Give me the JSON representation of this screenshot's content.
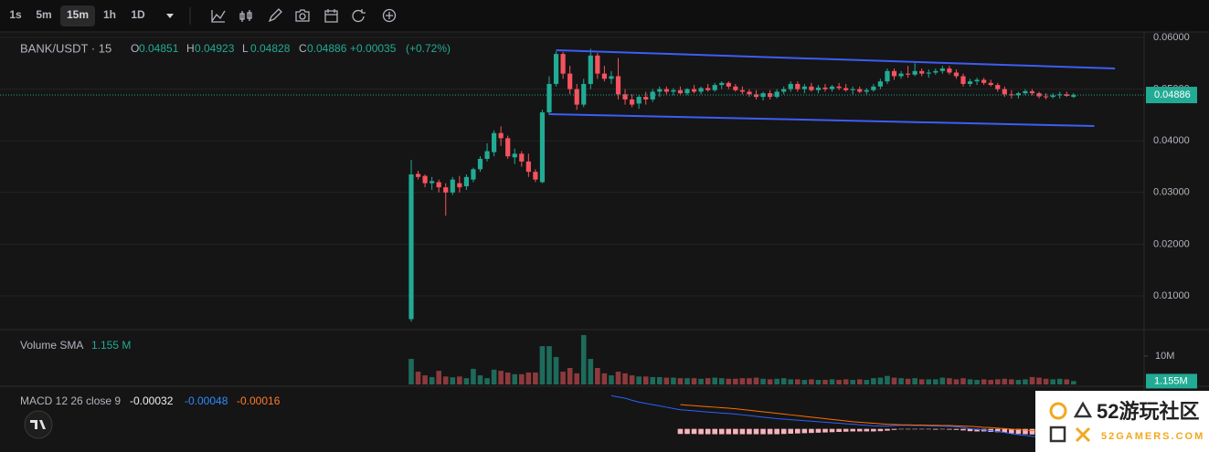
{
  "toolbar": {
    "intervals": [
      "1s",
      "5m",
      "15m",
      "1h",
      "1D"
    ],
    "selected": 2
  },
  "chart_data": {
    "type": "candlestick",
    "title": "BANK/USDT · 15",
    "ohlc_labels": [
      "O",
      "H",
      "L",
      "C"
    ],
    "change": {
      "value": 0.00035,
      "label": "+0.00035"
    },
    "change_pct": {
      "value": 0.72,
      "label": "(+0.72%)"
    },
    "up_color": "#22ab94",
    "down_color": "#f7525f",
    "ylim": [
      0.00364,
      0.06106
    ],
    "yticks": [
      {
        "value": 0.06,
        "label": "0.06000"
      },
      {
        "value": 0.05,
        "label": "0.05000"
      },
      {
        "value": 0.04,
        "label": "0.04000"
      },
      {
        "value": 0.03,
        "label": "0.03000"
      },
      {
        "value": 0.02,
        "label": "0.02000"
      },
      {
        "value": 0.01,
        "label": "0.01000"
      }
    ],
    "grid": true,
    "open": [
      0.0055,
      0.0336,
      0.0332,
      0.0318,
      0.032,
      0.031,
      0.03,
      0.0318,
      0.0312,
      0.0325,
      0.0345,
      0.0365,
      0.0378,
      0.0415,
      0.0405,
      0.0368,
      0.0375,
      0.036,
      0.034,
      0.032,
      0.0455,
      0.051,
      0.0568,
      0.053,
      0.05,
      0.047,
      0.051,
      0.0565,
      0.053,
      0.052,
      0.0525,
      0.049,
      0.048,
      0.0472,
      0.0485,
      0.048,
      0.0495,
      0.05,
      0.0495,
      0.0498,
      0.0492,
      0.05,
      0.0495,
      0.0502,
      0.0498,
      0.0508,
      0.0512,
      0.0505,
      0.0498,
      0.0495,
      0.049,
      0.0485,
      0.0492,
      0.0485,
      0.0495,
      0.05,
      0.051,
      0.05,
      0.0505,
      0.0498,
      0.0503,
      0.05,
      0.0505,
      0.0502,
      0.0498,
      0.05,
      0.0495,
      0.0498,
      0.0505,
      0.0515,
      0.0535,
      0.0525,
      0.053,
      0.0528,
      0.0535,
      0.053,
      0.0532,
      0.0535,
      0.054,
      0.0532,
      0.0525,
      0.051,
      0.0515,
      0.0518,
      0.0512,
      0.0508,
      0.05,
      0.049,
      0.0488,
      0.0492,
      0.0496,
      0.0492,
      0.0486,
      0.0485,
      0.0488,
      0.049,
      0.04851
    ],
    "high": [
      0.0363,
      0.0342,
      0.0335,
      0.033,
      0.0325,
      0.0318,
      0.033,
      0.0332,
      0.0335,
      0.0348,
      0.037,
      0.0395,
      0.042,
      0.0428,
      0.041,
      0.0385,
      0.038,
      0.0375,
      0.0345,
      0.046,
      0.0525,
      0.0573,
      0.0572,
      0.0545,
      0.051,
      0.052,
      0.0578,
      0.057,
      0.0545,
      0.0535,
      0.056,
      0.05,
      0.049,
      0.0488,
      0.0495,
      0.05,
      0.0505,
      0.0505,
      0.0502,
      0.0505,
      0.0502,
      0.0508,
      0.0505,
      0.051,
      0.0512,
      0.0515,
      0.0515,
      0.051,
      0.0505,
      0.05,
      0.0498,
      0.0495,
      0.0498,
      0.05,
      0.0505,
      0.0515,
      0.0515,
      0.051,
      0.0512,
      0.0508,
      0.051,
      0.0508,
      0.0512,
      0.051,
      0.0505,
      0.0505,
      0.0502,
      0.051,
      0.052,
      0.054,
      0.054,
      0.0535,
      0.0545,
      0.055,
      0.054,
      0.0538,
      0.054,
      0.0545,
      0.0545,
      0.0538,
      0.053,
      0.052,
      0.0522,
      0.0522,
      0.0518,
      0.0512,
      0.0505,
      0.0498,
      0.0495,
      0.05,
      0.05,
      0.0495,
      0.0492,
      0.0492,
      0.0495,
      0.0495,
      0.04923
    ],
    "low": [
      0.005,
      0.0325,
      0.031,
      0.0305,
      0.03,
      0.0255,
      0.0295,
      0.03,
      0.0305,
      0.032,
      0.034,
      0.036,
      0.037,
      0.039,
      0.0365,
      0.0355,
      0.035,
      0.033,
      0.032,
      0.0318,
      0.045,
      0.0505,
      0.052,
      0.049,
      0.046,
      0.0465,
      0.05,
      0.052,
      0.0515,
      0.051,
      0.048,
      0.047,
      0.0465,
      0.0462,
      0.047,
      0.0475,
      0.0485,
      0.049,
      0.0488,
      0.049,
      0.0488,
      0.0492,
      0.049,
      0.0495,
      0.0495,
      0.05,
      0.05,
      0.0495,
      0.049,
      0.0485,
      0.048,
      0.0478,
      0.048,
      0.0482,
      0.049,
      0.0495,
      0.0495,
      0.0492,
      0.0495,
      0.0492,
      0.0495,
      0.0495,
      0.0498,
      0.0495,
      0.049,
      0.0492,
      0.049,
      0.0495,
      0.05,
      0.051,
      0.0518,
      0.052,
      0.0522,
      0.0525,
      0.0525,
      0.0522,
      0.0528,
      0.053,
      0.0528,
      0.052,
      0.0505,
      0.0505,
      0.0508,
      0.0508,
      0.0505,
      0.0495,
      0.0485,
      0.0482,
      0.0482,
      0.0488,
      0.0488,
      0.0482,
      0.048,
      0.0482,
      0.0482,
      0.0485,
      0.04828
    ],
    "close": [
      0.0335,
      0.033,
      0.0318,
      0.0322,
      0.031,
      0.03,
      0.0325,
      0.031,
      0.033,
      0.0345,
      0.0365,
      0.038,
      0.0415,
      0.0405,
      0.037,
      0.0375,
      0.036,
      0.034,
      0.0325,
      0.0455,
      0.051,
      0.0568,
      0.053,
      0.05,
      0.047,
      0.051,
      0.0565,
      0.053,
      0.052,
      0.0525,
      0.049,
      0.048,
      0.047,
      0.0485,
      0.048,
      0.0495,
      0.05,
      0.0495,
      0.0498,
      0.0492,
      0.05,
      0.0495,
      0.0502,
      0.0498,
      0.0508,
      0.0512,
      0.0505,
      0.0498,
      0.0495,
      0.049,
      0.0485,
      0.0492,
      0.0485,
      0.0495,
      0.05,
      0.051,
      0.05,
      0.0505,
      0.0498,
      0.0503,
      0.05,
      0.0505,
      0.0502,
      0.0498,
      0.05,
      0.0495,
      0.0498,
      0.0505,
      0.0515,
      0.0535,
      0.0525,
      0.053,
      0.0528,
      0.0535,
      0.053,
      0.0532,
      0.0535,
      0.054,
      0.0532,
      0.0525,
      0.051,
      0.0515,
      0.0518,
      0.0512,
      0.0508,
      0.05,
      0.049,
      0.0488,
      0.0492,
      0.0496,
      0.0492,
      0.0486,
      0.0485,
      0.0488,
      0.049,
      0.0487,
      0.04886
    ],
    "trendlines": [
      {
        "x": [
          21,
          102
        ],
        "values": [
          0.05753,
          0.05399
        ],
        "color": "#3d5df5"
      },
      {
        "x": [
          20,
          99
        ],
        "values": [
          0.04516,
          0.04286
        ],
        "color": "#3d5df5"
      }
    ],
    "volume": {
      "name": "Volume SMA",
      "sma": {
        "value": 1.155,
        "label": "1.155 M",
        "axis_label": "1.155M"
      },
      "ylim": [
        0,
        19
      ],
      "yticks": [
        {
          "value": 10,
          "label": "10M"
        }
      ],
      "up_color": "#1d6b5a",
      "down_color": "#8c3a3d",
      "values": [
        9.0,
        4.5,
        3.2,
        2.6,
        4.8,
        2.8,
        2.5,
        2.8,
        2.2,
        5.5,
        3.2,
        2.2,
        5.2,
        4.8,
        4.2,
        3.6,
        3.6,
        4.2,
        4.2,
        13.5,
        13.5,
        9.7,
        4.5,
        5.8,
        3.9,
        17.4,
        9.0,
        5.8,
        3.9,
        3.2,
        4.5,
        3.9,
        3.2,
        2.8,
        2.8,
        2.6,
        2.6,
        2.4,
        2.4,
        2.2,
        2.2,
        2.2,
        2.0,
        2.2,
        2.4,
        2.2,
        2.0,
        2.0,
        2.2,
        2.2,
        2.4,
        2.0,
        1.8,
        2.0,
        2.2,
        1.8,
        1.8,
        1.6,
        1.8,
        1.6,
        1.6,
        1.8,
        1.6,
        1.8,
        1.6,
        1.8,
        1.6,
        2.2,
        2.4,
        3.0,
        2.4,
        2.2,
        2.0,
        2.2,
        1.8,
        1.8,
        1.8,
        2.4,
        2.2,
        1.8,
        2.2,
        1.8,
        1.6,
        1.8,
        1.6,
        1.8,
        2.0,
        1.8,
        1.6,
        1.8,
        2.6,
        2.4,
        2.0,
        1.8,
        2.0,
        1.8,
        1.2
      ]
    },
    "macd": {
      "name": "MACD 12 26 close 9",
      "ylim": [
        -0.0008,
        0.0016
      ],
      "macd_color": "#2962ff",
      "signal_color": "#ff6d00",
      "hist_color": "#f8b3bd",
      "macd": [
        null,
        null,
        null,
        null,
        null,
        null,
        null,
        null,
        null,
        null,
        null,
        null,
        null,
        null,
        null,
        null,
        null,
        null,
        null,
        null,
        null,
        null,
        null,
        null,
        null,
        null,
        null,
        null,
        null,
        0.0013,
        0.00125,
        0.0012,
        0.00112,
        0.00105,
        0.001,
        0.00095,
        0.0009,
        0.00085,
        0.0008,
        0.00075,
        0.00073,
        0.00071,
        0.00068,
        0.00066,
        0.00064,
        0.00062,
        0.0006,
        0.00058,
        0.00055,
        0.00052,
        0.00049,
        0.00046,
        0.00043,
        0.0004,
        0.00038,
        0.00036,
        0.00034,
        0.00032,
        0.0003,
        0.00028,
        0.00026,
        0.00024,
        0.00022,
        0.0002,
        0.00018,
        0.00016,
        0.00014,
        0.00012,
        0.00011,
        0.00011,
        0.00013,
        0.00014,
        0.00014,
        0.00013,
        0.00013,
        0.00012,
        0.00011,
        0.00011,
        0.0001,
        8e-05,
        5e-05,
        1e-05,
        -2e-05,
        -4e-05,
        -7e-05,
        -0.0001,
        -0.00014,
        -0.00019,
        -0.00023,
        -0.00026,
        -0.00029,
        -0.00032,
        -0.00036,
        -0.00039,
        -0.00042,
        -0.00045,
        -0.00048
      ],
      "signal": [
        null,
        null,
        null,
        null,
        null,
        null,
        null,
        null,
        null,
        null,
        null,
        null,
        null,
        null,
        null,
        null,
        null,
        null,
        null,
        null,
        null,
        null,
        null,
        null,
        null,
        null,
        null,
        null,
        null,
        null,
        null,
        null,
        null,
        null,
        null,
        null,
        null,
        null,
        null,
        0.00095,
        0.00093,
        0.00091,
        0.00089,
        0.00087,
        0.00085,
        0.00083,
        0.00081,
        0.00079,
        0.00076,
        0.00073,
        0.0007,
        0.00067,
        0.00064,
        0.00061,
        0.00058,
        0.00055,
        0.00052,
        0.00049,
        0.00046,
        0.00043,
        0.0004,
        0.00037,
        0.00034,
        0.00031,
        0.00028,
        0.00026,
        0.00024,
        0.00022,
        0.0002,
        0.00018,
        0.00017,
        0.00016,
        0.00016,
        0.00015,
        0.00015,
        0.00014,
        0.00014,
        0.00013,
        0.00013,
        0.00012,
        0.00011,
        0.0001,
        8e-05,
        6e-05,
        5e-05,
        3e-05,
        1e-05,
        -1e-05,
        -3e-05,
        -5e-05,
        -7e-05,
        -9e-05,
        -0.00011,
        -0.00012,
        -0.00014,
        -0.00015,
        -0.00016
      ],
      "histogram": [
        null,
        null,
        null,
        null,
        null,
        null,
        null,
        null,
        null,
        null,
        null,
        null,
        null,
        null,
        null,
        null,
        null,
        null,
        null,
        null,
        null,
        null,
        null,
        null,
        null,
        null,
        null,
        null,
        null,
        null,
        null,
        null,
        null,
        null,
        null,
        null,
        null,
        null,
        null,
        -0.0002,
        -0.0002,
        -0.0002,
        -0.00021,
        -0.00021,
        -0.00021,
        -0.00021,
        -0.00021,
        -0.00021,
        -0.00021,
        -0.00021,
        -0.00021,
        -0.00021,
        -0.00021,
        -0.00021,
        -0.0002,
        -0.00019,
        -0.00018,
        -0.00017,
        -0.00016,
        -0.00015,
        -0.00014,
        -0.00013,
        -0.00012,
        -0.00011,
        -0.0001,
        -0.0001,
        -0.0001,
        -0.0001,
        -9e-05,
        -7e-05,
        -4e-05,
        -2e-05,
        -2e-05,
        -2e-05,
        -2e-05,
        -2e-05,
        -3e-05,
        -2e-05,
        -3e-05,
        -4e-05,
        -6e-05,
        -9e-05,
        -0.0001,
        -0.0001,
        -0.00012,
        -0.00013,
        -0.00015,
        -0.00018,
        -0.0002,
        -0.00021,
        -0.00022,
        -0.00023,
        -0.00025,
        -0.00027,
        -0.00028,
        -0.0003,
        -0.00032
      ]
    }
  },
  "watermark": {
    "title": "52游玩社区",
    "subtitle": "52GAMERS.COM"
  }
}
